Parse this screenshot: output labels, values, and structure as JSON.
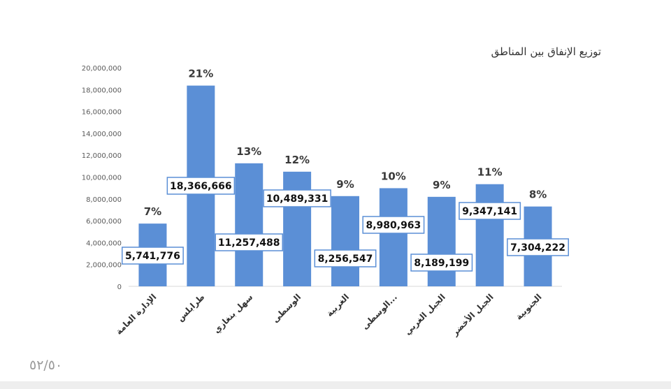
{
  "page_number": "٥٢/٥٠",
  "chart_data": {
    "type": "bar",
    "title": "توزيع الإنفاق بين المناطق",
    "xlabel": "",
    "ylabel": "",
    "ylim": [
      0,
      20000000
    ],
    "yticks": [
      0,
      2000000,
      4000000,
      6000000,
      8000000,
      10000000,
      12000000,
      14000000,
      16000000,
      18000000,
      20000000
    ],
    "ytick_labels": [
      "0",
      "2,000,000",
      "4,000,000",
      "6,000,000",
      "8,000,000",
      "10,000,000",
      "12,000,000",
      "14,000,000",
      "16,000,000",
      "18,000,000",
      "20,000,000"
    ],
    "grid": false,
    "legend": "none",
    "bar_color": "#5b8fd6",
    "categories": [
      "الإدارة العامة",
      "طرابلس",
      "سهل بنغازي",
      "الوسطى",
      "الغربية",
      "الوسطى...",
      "الجبل الغربي",
      "الجبل الأخضر",
      "الجنوبية"
    ],
    "values": [
      5741776,
      18366666,
      11257488,
      10489331,
      8256547,
      8980963,
      8189199,
      9347141,
      7304222
    ],
    "value_labels": [
      "5,741,776",
      "18,366,666",
      "11,257,488",
      "10,489,331",
      "8,256,547",
      "8,980,963",
      "8,189,199",
      "9,347,141",
      "7,304,222"
    ],
    "percent_labels": [
      "7%",
      "21%",
      "13%",
      "12%",
      "9%",
      "10%",
      "9%",
      "11%",
      "8%"
    ]
  }
}
